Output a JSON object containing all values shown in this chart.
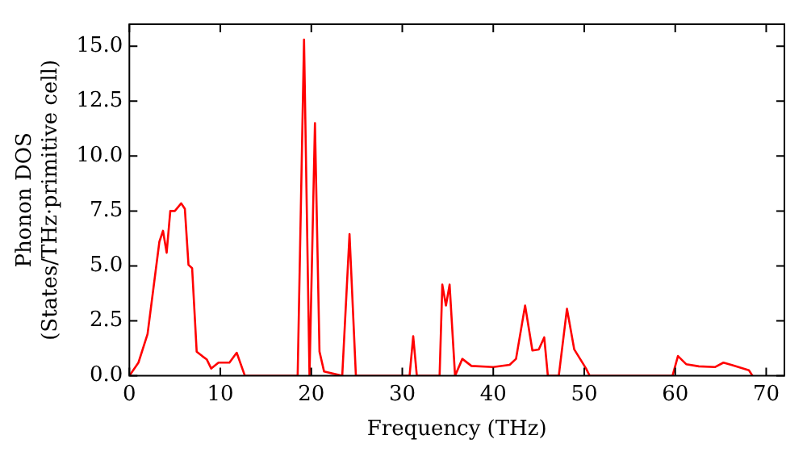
{
  "chart_data": {
    "type": "line",
    "xlabel": "Frequency (THz)",
    "ylabel": "Phonon DOS\n(States/THz·primitive cell)",
    "x": [
      0,
      1,
      2,
      3.3,
      3.7,
      4.1,
      4.5,
      5.0,
      5.7,
      6.1,
      6.5,
      6.9,
      7.4,
      8.0,
      8.5,
      9.0,
      9.8,
      11.0,
      11.8,
      12.7,
      18.5,
      19.2,
      19.8,
      20.4,
      20.9,
      21.4,
      23.4,
      24.2,
      24.9,
      30.8,
      31.2,
      31.6,
      34.1,
      34.4,
      34.8,
      35.2,
      35.8,
      36.6,
      37.6,
      40.0,
      41.8,
      42.5,
      43.5,
      44.3,
      45.0,
      45.6,
      46.0,
      47.2,
      48.1,
      48.9,
      50.2,
      50.6,
      59.7,
      60.3,
      61.2,
      62.6,
      64.4,
      65.3,
      66.3,
      68.1,
      68.5
    ],
    "series": [
      {
        "color": "#ff0000",
        "values": [
          0,
          0.6,
          1.9,
          6.1,
          6.6,
          5.6,
          7.5,
          7.5,
          7.85,
          7.6,
          5.05,
          4.9,
          1.1,
          0.9,
          0.75,
          0.33,
          0.6,
          0.6,
          1.05,
          0,
          0,
          15.3,
          0,
          11.5,
          1.1,
          0.2,
          0,
          6.45,
          0,
          0,
          1.8,
          0,
          0,
          4.15,
          3.2,
          4.15,
          0,
          0.77,
          0.45,
          0.4,
          0.5,
          0.77,
          3.2,
          1.15,
          1.2,
          1.75,
          0,
          0,
          3.05,
          1.2,
          0.33,
          0,
          0,
          0.9,
          0.53,
          0.43,
          0.4,
          0.6,
          0.48,
          0.25,
          0
        ]
      }
    ],
    "xlim": [
      0,
      72
    ],
    "xticks": [
      0,
      10,
      20,
      30,
      40,
      50,
      60,
      70
    ],
    "ylim": [
      0,
      16
    ],
    "yticks": [
      {
        "value": 0,
        "label": "0.0"
      },
      {
        "value": 2.5,
        "label": "2.5"
      },
      {
        "value": 5,
        "label": "5.0"
      },
      {
        "value": 7.5,
        "label": "7.5"
      },
      {
        "value": 10,
        "label": "10.0"
      },
      {
        "value": 12.5,
        "label": "12.5"
      },
      {
        "value": 15,
        "label": "15.0"
      }
    ],
    "grid": false,
    "legend": false,
    "marker": "none",
    "line_style": "solid"
  }
}
